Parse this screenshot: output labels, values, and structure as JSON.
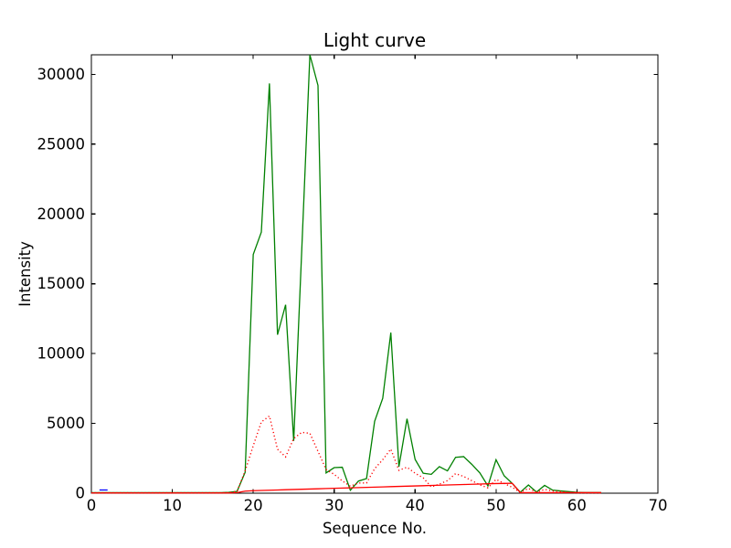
{
  "figure": {
    "background": "#ffffff",
    "frame_color": "#000000"
  },
  "chart_data": {
    "type": "line",
    "title": "Light curve",
    "xlabel": "Sequence No.",
    "ylabel": "Intensity",
    "xlim": [
      0,
      70
    ],
    "ylim": [
      0,
      31400
    ],
    "xticks": [
      0,
      10,
      20,
      30,
      40,
      50,
      60,
      70
    ],
    "yticks": [
      0,
      5000,
      10000,
      15000,
      20000,
      25000,
      30000
    ],
    "grid": false,
    "legend": "none",
    "series": [
      {
        "name": "intensity-green-solid",
        "color": "#008000",
        "style": "solid",
        "x0": 0,
        "dx": 1,
        "y": [
          40,
          40,
          40,
          40,
          40,
          40,
          40,
          40,
          40,
          40,
          40,
          40,
          40,
          40,
          40,
          40,
          40,
          60,
          130,
          1500,
          17100,
          18700,
          29350,
          11350,
          13500,
          3750,
          17500,
          31400,
          29200,
          1450,
          1830,
          1860,
          210,
          870,
          1050,
          5150,
          6800,
          11500,
          1900,
          5330,
          2420,
          1430,
          1350,
          1900,
          1600,
          2570,
          2620,
          2070,
          1450,
          520,
          2400,
          1250,
          700,
          70,
          590,
          80,
          560,
          220,
          160,
          110,
          60,
          45,
          45,
          45
        ]
      },
      {
        "name": "intensity-red-dotted",
        "color": "#ff0000",
        "style": "dotted",
        "x0": 0,
        "dx": 1,
        "y": [
          30,
          30,
          30,
          30,
          30,
          30,
          30,
          30,
          30,
          30,
          30,
          30,
          30,
          30,
          30,
          30,
          30,
          40,
          130,
          1600,
          3400,
          5100,
          5530,
          3150,
          2600,
          3920,
          4360,
          4290,
          3000,
          1700,
          1350,
          880,
          500,
          730,
          730,
          1750,
          2400,
          3160,
          1640,
          1860,
          1430,
          1100,
          450,
          650,
          900,
          1400,
          1200,
          900,
          600,
          380,
          990,
          700,
          420,
          70,
          340,
          70,
          270,
          160,
          110,
          50,
          30,
          30,
          30,
          30
        ]
      },
      {
        "name": "background-red-solid",
        "color": "#ff0000",
        "style": "solid",
        "x0": 0,
        "dx": 1,
        "y": [
          15,
          15,
          15,
          15,
          15,
          15,
          15,
          15,
          15,
          15,
          15,
          15,
          15,
          15,
          15,
          15,
          15,
          15,
          40,
          150,
          180,
          197,
          214,
          231,
          248,
          265,
          282,
          299,
          316,
          333,
          350,
          367,
          384,
          401,
          418,
          435,
          452,
          469,
          486,
          503,
          520,
          537,
          554,
          571,
          588,
          605,
          622,
          639,
          656,
          673,
          690,
          700,
          710,
          35,
          35,
          35,
          35,
          35,
          35,
          35,
          35,
          35,
          35,
          35
        ]
      },
      {
        "name": "blue-segment",
        "color": "#0000ff",
        "style": "solid",
        "x": [
          1,
          2
        ],
        "y": [
          230,
          230
        ]
      }
    ]
  }
}
